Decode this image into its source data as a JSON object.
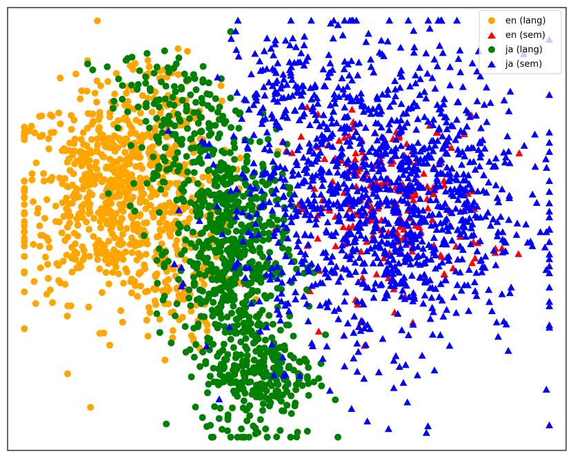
{
  "chart_data": {
    "type": "scatter",
    "title": "",
    "xlabel": "",
    "ylabel": "",
    "xlim": [
      0,
      100
    ],
    "ylim": [
      0,
      100
    ],
    "grid": false,
    "axes_ticks": false,
    "legend_position": "top-right",
    "series": [
      {
        "name": "en (lang)",
        "marker": "circle",
        "color": "#FFA500",
        "clusters": [
          {
            "cx": 20,
            "cy": 58,
            "sx": 9,
            "sy": 12,
            "n": 750
          },
          {
            "cx": 30,
            "cy": 36,
            "sx": 4,
            "sy": 7,
            "n": 80
          },
          {
            "cx": 28,
            "cy": 80,
            "sx": 3,
            "sy": 5,
            "n": 40
          }
        ]
      },
      {
        "name": "en (sem)",
        "marker": "triangle",
        "color": "#FF0000",
        "clusters": [
          {
            "cx": 68,
            "cy": 55,
            "sx": 9,
            "sy": 10,
            "n": 220
          }
        ]
      },
      {
        "name": "ja (lang)",
        "marker": "circle",
        "color": "#008000",
        "clusters": [
          {
            "cx": 40,
            "cy": 45,
            "sx": 5,
            "sy": 12,
            "n": 520
          },
          {
            "cx": 45,
            "cy": 18,
            "sx": 5,
            "sy": 8,
            "n": 280
          },
          {
            "cx": 32,
            "cy": 70,
            "sx": 5,
            "sy": 9,
            "n": 160
          },
          {
            "cx": 25,
            "cy": 82,
            "sx": 6,
            "sy": 4,
            "n": 40
          }
        ]
      },
      {
        "name": "ja (sem)",
        "marker": "triangle",
        "color": "#0000FF",
        "clusters": [
          {
            "cx": 67,
            "cy": 57,
            "sx": 13,
            "sy": 17,
            "n": 1300
          },
          {
            "cx": 50,
            "cy": 82,
            "sx": 4,
            "sy": 7,
            "n": 80
          }
        ]
      }
    ]
  }
}
